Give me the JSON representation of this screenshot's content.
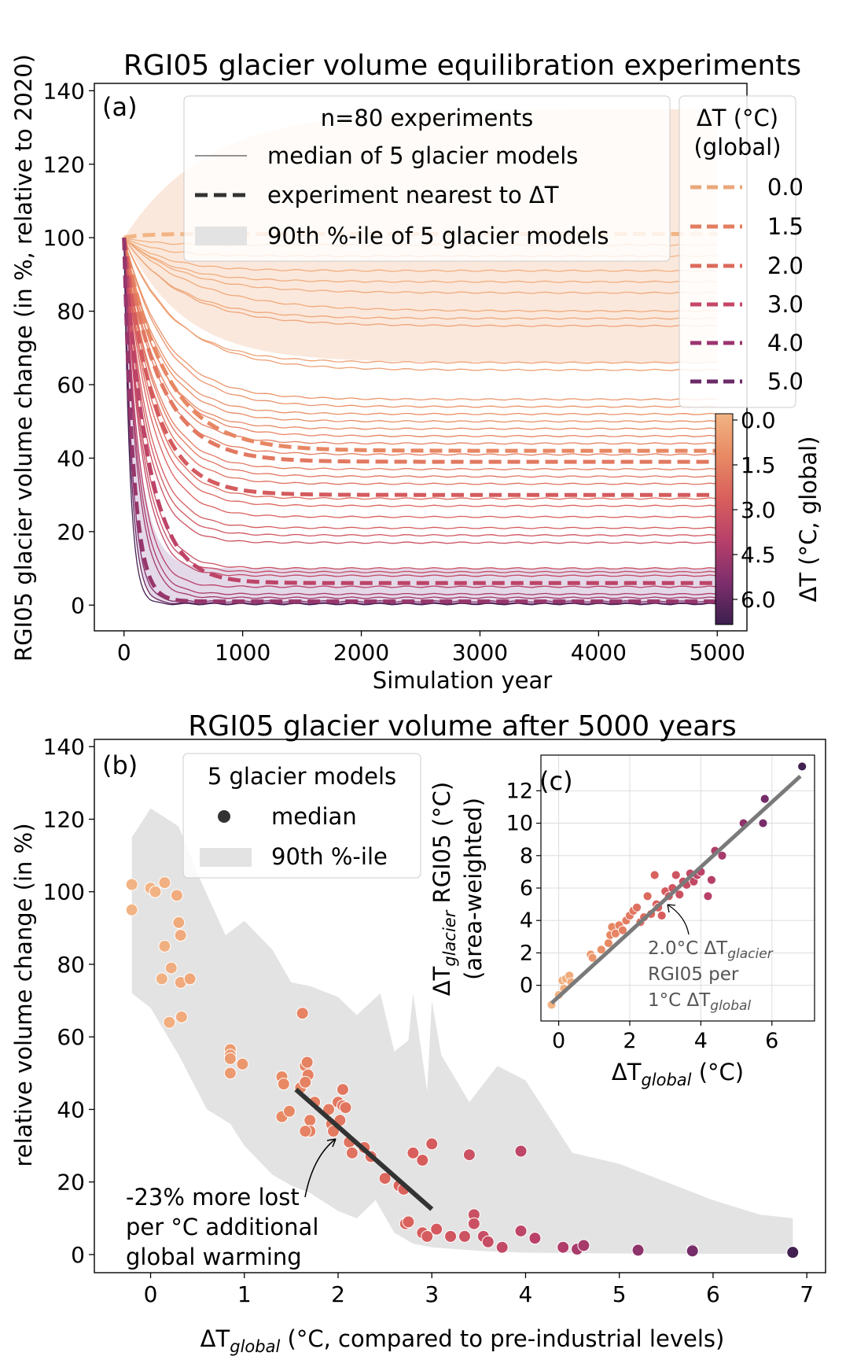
{
  "colors": {
    "dt_0_0": "#e9a77a",
    "dt_1_5": "#e27d5f",
    "dt_2_0": "#dc6a5c",
    "dt_3_0": "#c54766",
    "dt_4_0": "#9c346f",
    "dt_5_0": "#6b2a68",
    "band_gray": "#e3e3e3",
    "fit_line": "#333333",
    "inset_fit_line": "#7a7a7a"
  },
  "top_panel": {
    "title": "RGI05 glacier volume equilibration experiments",
    "panel_label": "(a)",
    "xlabel": "Simulation year",
    "ylabel": "RGI05 glacier volume change (in %, relative to 2020)",
    "legend_title": "n=80 experiments",
    "legend_items": [
      "median of 5 glacier models",
      "experiment nearest to ΔT",
      "90th %-ile of 5 glacier models"
    ],
    "dt_legend_title_1": "ΔT (°C)",
    "dt_legend_title_2": "(global)",
    "dt_legend_values": [
      "0.0",
      "1.5",
      "2.0",
      "3.0",
      "4.0",
      "5.0"
    ],
    "colorbar_label": "ΔT (°C, global)",
    "colorbar_ticks": [
      "0.0",
      "1.5",
      "3.0",
      "4.5",
      "6.0"
    ]
  },
  "bottom_panel": {
    "title": "RGI05 glacier volume after 5000 years",
    "panel_label": "(b)",
    "xlabel_prefix": "ΔT",
    "xlabel_sub": "global",
    "xlabel_suffix": " (°C, compared to pre-industrial levels)",
    "ylabel": "relative volume change (in %)",
    "legend_title": "5 glacier models",
    "legend_items": [
      "median",
      "90th %-ile"
    ],
    "annotation": [
      "-23% more lost",
      "per °C additional",
      "global warming"
    ]
  },
  "inset_panel": {
    "panel_label": "(c)",
    "ylabel_prefix": "ΔT",
    "ylabel_sub": "glacier",
    "ylabel_suffix": " RGI05 (°C)",
    "ylabel_line2": "(area-weighted)",
    "xlabel_prefix": "ΔT",
    "xlabel_sub": "global",
    "xlabel_suffix": " (°C)",
    "ann_line1_prefix": "2.0°C ΔT",
    "ann_line1_sub": "glacier",
    "ann_line2": "RGI05 per",
    "ann_line3_prefix": "1°C ΔT",
    "ann_line3_sub": "global"
  },
  "chart_data": [
    {
      "type": "line",
      "title": "RGI05 glacier volume equilibration experiments",
      "xlabel": "Simulation year",
      "ylabel": "RGI05 glacier volume change (in %, relative to 2020)",
      "xlim": [
        -250,
        5250
      ],
      "ylim": [
        -7,
        142
      ],
      "xticks": [
        0,
        1000,
        2000,
        3000,
        4000,
        5000
      ],
      "yticks": [
        0,
        20,
        40,
        60,
        80,
        100,
        120,
        140
      ],
      "series": [
        {
          "name": "0.0",
          "dt": 0.0,
          "highlight": true,
          "final": 101,
          "tau": 150
        },
        {
          "name": "1.5",
          "dt": 1.5,
          "highlight": true,
          "final": 42,
          "tau": 350
        },
        {
          "name": "2.0",
          "dt": 2.0,
          "highlight": true,
          "final": 39,
          "tau": 300
        },
        {
          "name": "3.0",
          "dt": 3.0,
          "highlight": true,
          "final": 30,
          "tau": 250
        },
        {
          "name": "4.0",
          "dt": 4.0,
          "highlight": true,
          "final": 6,
          "tau": 200
        },
        {
          "name": "5.0",
          "dt": 5.0,
          "highlight": true,
          "final": 1,
          "tau": 80
        },
        {
          "dt": 0.1,
          "final": 98,
          "tau": 250
        },
        {
          "dt": 0.15,
          "final": 95,
          "tau": 300
        },
        {
          "dt": 0.2,
          "final": 91,
          "tau": 350
        },
        {
          "dt": 0.25,
          "final": 88,
          "tau": 400
        },
        {
          "dt": 0.3,
          "final": 85,
          "tau": 500
        },
        {
          "dt": 0.35,
          "final": 80,
          "tau": 600
        },
        {
          "dt": 0.4,
          "final": 78,
          "tau": 450
        },
        {
          "dt": 0.5,
          "final": 76,
          "tau": 500
        },
        {
          "dt": 0.6,
          "final": 66,
          "tau": 400
        },
        {
          "dt": 0.7,
          "final": 64,
          "tau": 450
        },
        {
          "dt": 1.0,
          "final": 56,
          "tau": 350
        },
        {
          "dt": 1.1,
          "final": 54,
          "tau": 350
        },
        {
          "dt": 1.2,
          "final": 52,
          "tau": 300
        },
        {
          "dt": 1.3,
          "final": 50,
          "tau": 300
        },
        {
          "dt": 1.4,
          "final": 48,
          "tau": 280
        },
        {
          "dt": 1.6,
          "final": 46,
          "tau": 300
        },
        {
          "dt": 1.7,
          "final": 44,
          "tau": 280
        },
        {
          "dt": 1.8,
          "final": 41,
          "tau": 280
        },
        {
          "dt": 1.9,
          "final": 37,
          "tau": 260
        },
        {
          "dt": 2.1,
          "final": 35,
          "tau": 260
        },
        {
          "dt": 2.2,
          "final": 33,
          "tau": 250
        },
        {
          "dt": 2.4,
          "final": 29,
          "tau": 240
        },
        {
          "dt": 2.6,
          "final": 27,
          "tau": 230
        },
        {
          "dt": 2.8,
          "final": 24,
          "tau": 220
        },
        {
          "dt": 3.0,
          "final": 21,
          "tau": 200
        },
        {
          "dt": 3.2,
          "final": 19,
          "tau": 190
        },
        {
          "dt": 3.4,
          "final": 17,
          "tau": 180
        },
        {
          "dt": 3.5,
          "final": 10,
          "tau": 170
        },
        {
          "dt": 3.6,
          "final": 9,
          "tau": 160
        },
        {
          "dt": 3.8,
          "final": 8,
          "tau": 150
        },
        {
          "dt": 4.2,
          "final": 5,
          "tau": 130
        },
        {
          "dt": 4.5,
          "final": 3,
          "tau": 120
        },
        {
          "dt": 4.7,
          "final": 2,
          "tau": 110
        },
        {
          "dt": 5.5,
          "final": 1,
          "tau": 70
        },
        {
          "dt": 6.0,
          "final": 0.5,
          "tau": 60
        },
        {
          "dt": 6.8,
          "final": 0.3,
          "tau": 50
        }
      ]
    },
    {
      "type": "scatter",
      "title": "RGI05 glacier volume after 5000 years",
      "xlabel": "ΔTglobal (°C, compared to pre-industrial levels)",
      "ylabel": "relative volume change (in %)",
      "xlim": [
        -0.6,
        7.2
      ],
      "ylim": [
        -5,
        142
      ],
      "xticks": [
        0,
        1,
        2,
        3,
        4,
        5,
        6,
        7
      ],
      "yticks": [
        0,
        20,
        40,
        60,
        80,
        100,
        120,
        140
      ],
      "points": [
        [
          -0.2,
          102
        ],
        [
          -0.2,
          95
        ],
        [
          0.0,
          101
        ],
        [
          0.05,
          100
        ],
        [
          0.15,
          102.5
        ],
        [
          0.28,
          99
        ],
        [
          0.3,
          91.5
        ],
        [
          0.32,
          88
        ],
        [
          0.15,
          85
        ],
        [
          0.12,
          76
        ],
        [
          0.2,
          64
        ],
        [
          0.22,
          79
        ],
        [
          0.32,
          75
        ],
        [
          0.33,
          65.5
        ],
        [
          0.42,
          76
        ],
        [
          0.85,
          56.5
        ],
        [
          0.85,
          55
        ],
        [
          0.85,
          54
        ],
        [
          0.85,
          50
        ],
        [
          0.98,
          52.5
        ],
        [
          1.4,
          49
        ],
        [
          1.42,
          47
        ],
        [
          1.4,
          38
        ],
        [
          1.48,
          39.5
        ],
        [
          1.6,
          46
        ],
        [
          1.62,
          66.5
        ],
        [
          1.65,
          52
        ],
        [
          1.67,
          53
        ],
        [
          1.68,
          49.5
        ],
        [
          1.65,
          47.5
        ],
        [
          1.7,
          37
        ],
        [
          1.7,
          34
        ],
        [
          1.65,
          34
        ],
        [
          1.75,
          42
        ],
        [
          1.9,
          40
        ],
        [
          1.93,
          36
        ],
        [
          1.95,
          34
        ],
        [
          2.0,
          42
        ],
        [
          2.02,
          37
        ],
        [
          2.05,
          41
        ],
        [
          2.05,
          45.5
        ],
        [
          2.08,
          40.5
        ],
        [
          2.12,
          31
        ],
        [
          2.15,
          28
        ],
        [
          2.28,
          29.5
        ],
        [
          2.35,
          27
        ],
        [
          2.5,
          21
        ],
        [
          2.65,
          19
        ],
        [
          2.7,
          18
        ],
        [
          2.72,
          8.5
        ],
        [
          2.75,
          9
        ],
        [
          2.8,
          28
        ],
        [
          2.9,
          6
        ],
        [
          2.95,
          5
        ],
        [
          2.9,
          26
        ],
        [
          3.0,
          30.5
        ],
        [
          3.05,
          7
        ],
        [
          3.2,
          5
        ],
        [
          3.35,
          5
        ],
        [
          3.4,
          27.5
        ],
        [
          3.45,
          11
        ],
        [
          3.45,
          8.5
        ],
        [
          3.55,
          5
        ],
        [
          3.6,
          3.5
        ],
        [
          3.75,
          2
        ],
        [
          3.95,
          6.5
        ],
        [
          3.95,
          28.5
        ],
        [
          4.1,
          4.5
        ],
        [
          4.4,
          2
        ],
        [
          4.55,
          1.5
        ],
        [
          4.62,
          2.5
        ],
        [
          5.2,
          1.2
        ],
        [
          5.78,
          1.3
        ],
        [
          5.78,
          1
        ],
        [
          6.85,
          0.6
        ]
      ],
      "p90_band_upper": [
        [
          -0.2,
          115
        ],
        [
          0.0,
          123
        ],
        [
          0.3,
          118
        ],
        [
          0.5,
          105
        ],
        [
          0.8,
          88
        ],
        [
          1.0,
          92
        ],
        [
          1.3,
          84
        ],
        [
          1.5,
          75
        ],
        [
          1.7,
          74
        ],
        [
          2.0,
          71
        ],
        [
          2.2,
          66
        ],
        [
          2.45,
          72
        ],
        [
          2.6,
          56
        ],
        [
          2.75,
          59
        ],
        [
          2.8,
          72
        ],
        [
          2.95,
          45
        ],
        [
          3.0,
          70
        ],
        [
          3.1,
          55
        ],
        [
          3.4,
          42
        ],
        [
          3.7,
          52
        ],
        [
          4.0,
          48
        ],
        [
          4.5,
          28
        ],
        [
          5.0,
          25
        ],
        [
          5.5,
          20
        ],
        [
          6.0,
          15
        ],
        [
          6.5,
          11
        ],
        [
          6.85,
          10
        ]
      ],
      "p90_band_lower": [
        [
          -0.2,
          72
        ],
        [
          0.0,
          68
        ],
        [
          0.3,
          55
        ],
        [
          0.6,
          40
        ],
        [
          0.85,
          36
        ],
        [
          1.0,
          30
        ],
        [
          1.3,
          22
        ],
        [
          1.5,
          19
        ],
        [
          1.7,
          17
        ],
        [
          2.0,
          12
        ],
        [
          2.2,
          10
        ],
        [
          2.4,
          15
        ],
        [
          2.6,
          6
        ],
        [
          2.8,
          3
        ],
        [
          3.0,
          2
        ],
        [
          3.5,
          1
        ],
        [
          4.0,
          0.5
        ],
        [
          5.0,
          0.3
        ],
        [
          6.0,
          0.2
        ],
        [
          6.85,
          0.2
        ]
      ],
      "fit_line": {
        "x": [
          1.55,
          3.0
        ],
        "y": [
          45.5,
          12.5
        ],
        "slope_label": "-23% more lost per °C additional global warming"
      }
    },
    {
      "type": "scatter",
      "xlabel": "ΔTglobal (°C)",
      "ylabel": "ΔTglacier RGI05 (°C) (area-weighted)",
      "xlim": [
        -0.5,
        7.2
      ],
      "ylim": [
        -2.2,
        14.2
      ],
      "xticks": [
        0,
        2,
        4,
        6
      ],
      "yticks": [
        0,
        2,
        4,
        6,
        8,
        10,
        12
      ],
      "points": [
        [
          -0.2,
          -1.2
        ],
        [
          0.0,
          -0.6
        ],
        [
          0.1,
          0.3
        ],
        [
          0.15,
          -0.2
        ],
        [
          0.2,
          0.4
        ],
        [
          0.3,
          0.6
        ],
        [
          0.35,
          0.2
        ],
        [
          0.9,
          1.9
        ],
        [
          0.95,
          1.7
        ],
        [
          1.2,
          2.2
        ],
        [
          1.4,
          2.6
        ],
        [
          1.45,
          3.1
        ],
        [
          1.5,
          3.6
        ],
        [
          1.6,
          3.2
        ],
        [
          1.7,
          3.7
        ],
        [
          1.8,
          3.4
        ],
        [
          1.9,
          4.0
        ],
        [
          2.0,
          4.3
        ],
        [
          2.1,
          4.6
        ],
        [
          2.2,
          4.8
        ],
        [
          2.3,
          3.9
        ],
        [
          2.4,
          4.2
        ],
        [
          2.5,
          5.5
        ],
        [
          2.6,
          4.4
        ],
        [
          2.7,
          6.8
        ],
        [
          2.75,
          5.0
        ],
        [
          2.8,
          4.8
        ],
        [
          2.9,
          4.3
        ],
        [
          3.0,
          5.8
        ],
        [
          3.1,
          5.5
        ],
        [
          3.2,
          6.0
        ],
        [
          3.3,
          6.8
        ],
        [
          3.4,
          5.6
        ],
        [
          3.5,
          6.4
        ],
        [
          3.6,
          6.2
        ],
        [
          3.7,
          6.9
        ],
        [
          3.8,
          6.4
        ],
        [
          3.9,
          6.8
        ],
        [
          4.0,
          7.0
        ],
        [
          4.2,
          5.5
        ],
        [
          4.3,
          6.5
        ],
        [
          4.4,
          8.3
        ],
        [
          4.6,
          8.0
        ],
        [
          5.2,
          10.0
        ],
        [
          5.75,
          10.0
        ],
        [
          5.8,
          11.5
        ],
        [
          6.85,
          13.5
        ]
      ],
      "fit_line": {
        "x": [
          -0.2,
          6.8
        ],
        "y": [
          -1.1,
          12.9
        ],
        "slope_label": "2.0°C ΔTglacier RGI05 per 1°C ΔTglobal"
      }
    }
  ]
}
